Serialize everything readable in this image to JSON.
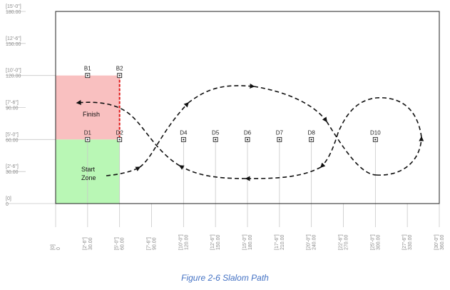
{
  "figure": {
    "caption": "Figure 2-6 Slalom Path",
    "x_range": [
      0,
      360
    ],
    "y_range": [
      0,
      180
    ],
    "colors": {
      "finish_zone": "#f9c0c0",
      "start_zone": "#b9f7b5",
      "finish_line": "#e01818",
      "path": "#111111",
      "grid": "#c8c8c8",
      "tick_text": "#8a8a8a",
      "caption": "#4472c4"
    },
    "y_ticks": [
      {
        "value": 0,
        "feet": "[0]",
        "inches": "0"
      },
      {
        "value": 30,
        "feet": "[2'-6\"]",
        "inches": "30.00"
      },
      {
        "value": 60,
        "feet": "[5'-0\"]",
        "inches": "60.00"
      },
      {
        "value": 90,
        "feet": "[7'-6\"]",
        "inches": "90.00"
      },
      {
        "value": 120,
        "feet": "[10'-0\"]",
        "inches": "120.00"
      },
      {
        "value": 150,
        "feet": "[12'-6\"]",
        "inches": "150.00"
      },
      {
        "value": 180,
        "feet": "[15'-0\"]",
        "inches": "180.00"
      }
    ],
    "x_ticks": [
      {
        "value": 0,
        "feet": "[0]",
        "inches": "0"
      },
      {
        "value": 30,
        "feet": "[2'-6\"]",
        "inches": "30.00"
      },
      {
        "value": 60,
        "feet": "[5'-0\"]",
        "inches": "60.00"
      },
      {
        "value": 90,
        "feet": "[7'-6\"]",
        "inches": "90.00"
      },
      {
        "value": 120,
        "feet": "[10'-0\"]",
        "inches": "120.00"
      },
      {
        "value": 150,
        "feet": "[12'-6\"]",
        "inches": "150.00"
      },
      {
        "value": 180,
        "feet": "[15'-0\"]",
        "inches": "180.00"
      },
      {
        "value": 210,
        "feet": "[17'-6\"]",
        "inches": "210.00"
      },
      {
        "value": 240,
        "feet": "[20'-0\"]",
        "inches": "240.00"
      },
      {
        "value": 270,
        "feet": "[22'-6\"]",
        "inches": "270.00"
      },
      {
        "value": 300,
        "feet": "[25'-0\"]",
        "inches": "300.00"
      },
      {
        "value": 330,
        "feet": "[27'-6\"]",
        "inches": "330.00"
      },
      {
        "value": 360,
        "feet": "[30'-0\"]",
        "inches": "360.00"
      }
    ],
    "zones": {
      "finish": {
        "label": "Finish",
        "x": [
          0,
          60
        ],
        "y": [
          60,
          120
        ]
      },
      "start": {
        "label_line1": "Start",
        "label_line2": "Zone",
        "x": [
          0,
          60
        ],
        "y": [
          0,
          60
        ]
      }
    },
    "markers": [
      {
        "label": "B1",
        "x": 30,
        "y": 120
      },
      {
        "label": "B2",
        "x": 60,
        "y": 120
      },
      {
        "label": "D1",
        "x": 30,
        "y": 60
      },
      {
        "label": "D2",
        "x": 60,
        "y": 60
      },
      {
        "label": "D4",
        "x": 120,
        "y": 60
      },
      {
        "label": "D5",
        "x": 150,
        "y": 60
      },
      {
        "label": "D6",
        "x": 180,
        "y": 60
      },
      {
        "label": "D7",
        "x": 210,
        "y": 60
      },
      {
        "label": "D8",
        "x": 240,
        "y": 60
      },
      {
        "label": "D10",
        "x": 300,
        "y": 60
      }
    ]
  }
}
